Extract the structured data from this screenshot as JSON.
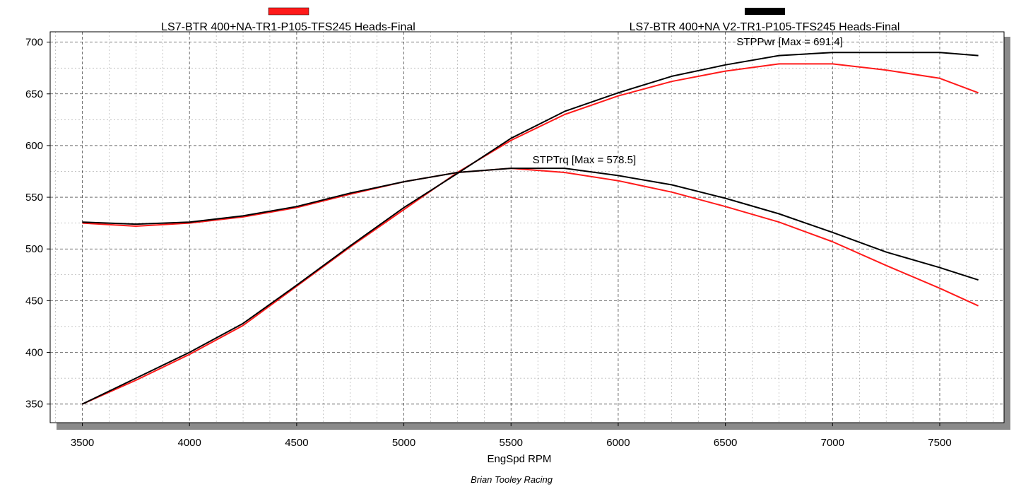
{
  "chart_data": {
    "type": "line",
    "xlabel": "EngSpd RPM",
    "ylabel": "",
    "credit": "Brian Tooley Racing",
    "xlim": [
      3350,
      7800
    ],
    "ylim": [
      332,
      710
    ],
    "x_ticks": [
      3500,
      4000,
      4500,
      5000,
      5500,
      6000,
      6500,
      7000,
      7500
    ],
    "y_ticks": [
      350,
      400,
      450,
      500,
      550,
      600,
      650,
      700
    ],
    "grid": true,
    "legend_position": "top",
    "legend": [
      {
        "label": "LS7-BTR 400+NA-TR1-P105-TFS245 Heads-Final",
        "color": "#ff1a1a"
      },
      {
        "label": "LS7-BTR 400+NA V2-TR1-P105-TFS245 Heads-Final",
        "color": "#000000"
      }
    ],
    "annotations": [
      {
        "text": "STPPwr [Max = 691.4]",
        "x": 6800,
        "y": 697
      },
      {
        "text": "STPTrq [Max = 578.5]",
        "x": 5600,
        "y": 583
      }
    ],
    "x": [
      3500,
      3750,
      4000,
      4250,
      4500,
      4750,
      5000,
      5250,
      5500,
      5750,
      6000,
      6250,
      6500,
      6750,
      7000,
      7250,
      7500,
      7680
    ],
    "series": [
      {
        "name": "STPPwr",
        "run": "LS7-BTR 400+NA-TR1-P105-TFS245 Heads-Final",
        "color": "#ff1a1a",
        "values": [
          350,
          373,
          398,
          426,
          464,
          502,
          538,
          574,
          605,
          630,
          648,
          662,
          672,
          679,
          679,
          673,
          665,
          651
        ]
      },
      {
        "name": "STPPwr",
        "run": "LS7-BTR 400+NA V2-TR1-P105-TFS245 Heads-Final",
        "color": "#000000",
        "values": [
          350,
          375,
          400,
          428,
          465,
          503,
          540,
          573,
          607,
          633,
          651,
          667,
          678,
          687,
          690,
          690,
          690,
          687
        ]
      },
      {
        "name": "STPTrq",
        "run": "LS7-BTR 400+NA-TR1-P105-TFS245 Heads-Final",
        "color": "#ff1a1a",
        "values": [
          525,
          522,
          525,
          531,
          540,
          553,
          565,
          574,
          578,
          574,
          566,
          555,
          541,
          526,
          507,
          484,
          462,
          445
        ]
      },
      {
        "name": "STPTrq",
        "run": "LS7-BTR 400+NA V2-TR1-P105-TFS245 Heads-Final",
        "color": "#000000",
        "values": [
          526,
          524,
          526,
          532,
          541,
          554,
          565,
          574,
          578,
          578,
          571,
          562,
          549,
          534,
          516,
          497,
          482,
          470
        ]
      }
    ]
  }
}
